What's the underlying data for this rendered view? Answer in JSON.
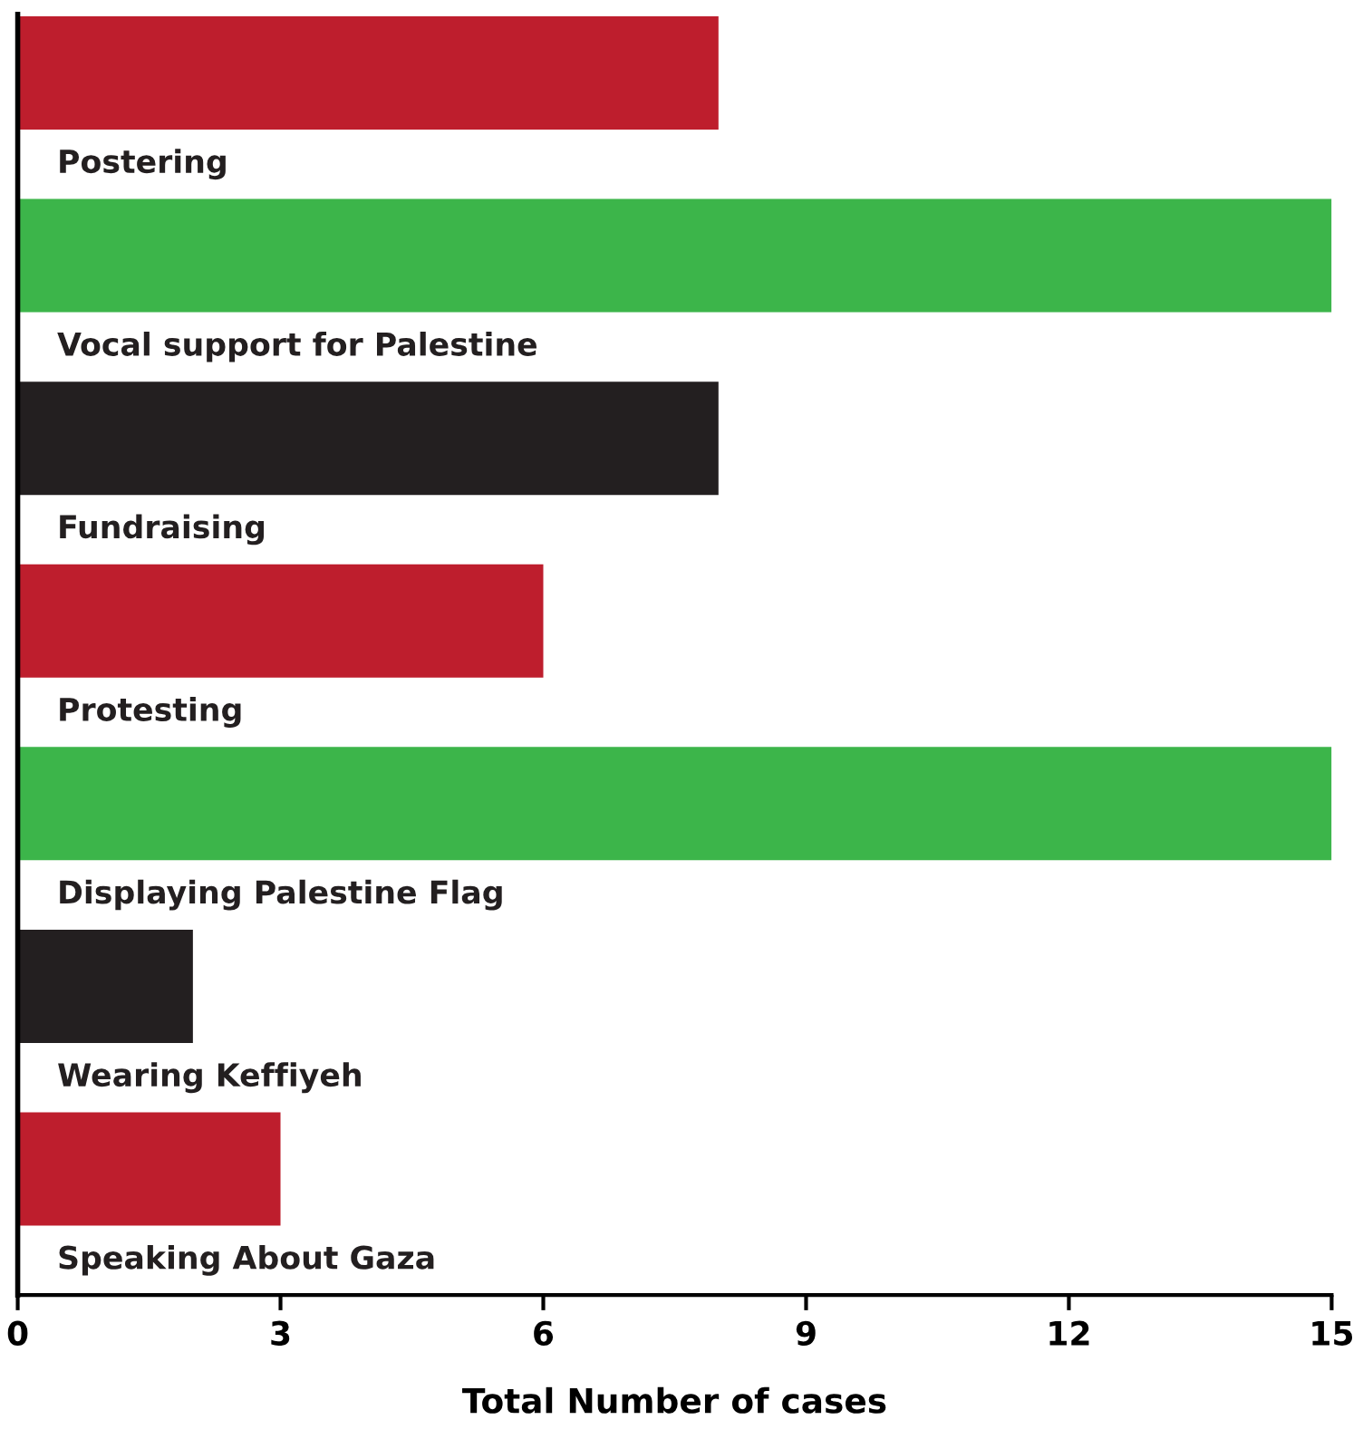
{
  "chart_data": {
    "type": "bar",
    "orientation": "horizontal",
    "xlabel": "Total Number of cases",
    "categories": [
      "Postering",
      "Vocal support for Palestine",
      "Fundraising",
      "Protesting",
      "Displaying Palestine Flag",
      "Wearing Keffiyeh",
      "Speaking About Gaza"
    ],
    "values": [
      8,
      15,
      8,
      6,
      15,
      2,
      3
    ],
    "colors": [
      "#be1e2d",
      "#3cb54a",
      "#231f20",
      "#be1e2d",
      "#3cb54a",
      "#231f20",
      "#be1e2d"
    ],
    "xlim": [
      0,
      15
    ],
    "xticks": [
      0,
      3,
      6,
      9,
      12,
      15
    ],
    "grid": false,
    "legend": false
  }
}
